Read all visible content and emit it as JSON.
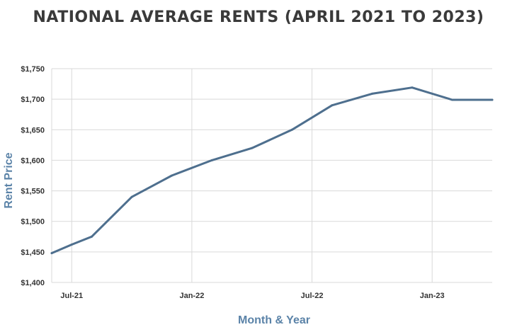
{
  "title": "NATIONAL AVERAGE RENTS (APRIL 2021 TO 2023)",
  "colors": {
    "line": "#4e6f8e",
    "grid": "#d9d9d9",
    "axis_label": "#5b83a8",
    "title": "#3a3a3a"
  },
  "chart_data": {
    "type": "line",
    "title": "NATIONAL AVERAGE RENTS (APRIL 2021 TO 2023)",
    "xlabel": "Month & Year",
    "ylabel": "Rent Price",
    "ylim": [
      1400,
      1750
    ],
    "grid": true,
    "y_ticks": [
      1400,
      1450,
      1500,
      1550,
      1600,
      1650,
      1700,
      1750
    ],
    "y_tick_labels": [
      "$1,400",
      "$1,450",
      "$1,500",
      "$1,550",
      "$1,600",
      "$1,650",
      "$1,700",
      "$1,750"
    ],
    "x_ticks": [
      "2021-07",
      "2022-01",
      "2022-07",
      "2023-01"
    ],
    "x_tick_labels": [
      "Jul-21",
      "Jan-22",
      "Jul-22",
      "Jan-23"
    ],
    "series": [
      {
        "x": [
          "2021-06",
          "2021-07",
          "2021-08",
          "2021-10",
          "2021-12",
          "2022-02",
          "2022-04",
          "2022-06",
          "2022-08",
          "2022-10",
          "2022-12",
          "2023-02",
          "2023-04"
        ],
        "values": [
          1448,
          1462,
          1475,
          1540,
          1575,
          1600,
          1620,
          1650,
          1690,
          1709,
          1719,
          1699,
          1699
        ]
      }
    ]
  }
}
